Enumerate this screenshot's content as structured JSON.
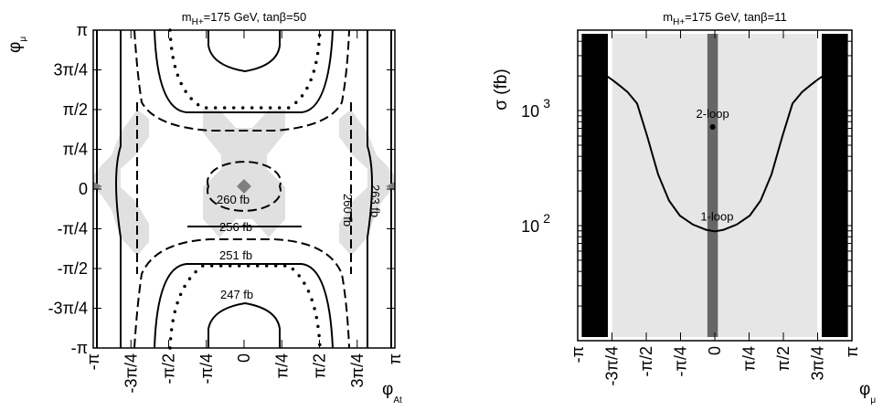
{
  "chart_data": [
    {
      "type": "contour",
      "title_main": "m",
      "title_sub": "H+",
      "title_rest": "=175 GeV, tanβ=50",
      "xlabel_main": "φ",
      "xlabel_sub": "At",
      "ylabel_main": "φ",
      "ylabel_sub": "μ",
      "xlim": [
        -3.1416,
        3.1416
      ],
      "ylim": [
        -3.1416,
        3.1416
      ],
      "x_ticks": [
        {
          "v": -3.1416,
          "label": "-π"
        },
        {
          "v": -2.3562,
          "label": "-3π/4"
        },
        {
          "v": -1.5708,
          "label": "-π/2"
        },
        {
          "v": -0.7854,
          "label": "-π/4"
        },
        {
          "v": 0,
          "label": "0"
        },
        {
          "v": 0.7854,
          "label": "π/4"
        },
        {
          "v": 1.5708,
          "label": "π/2"
        },
        {
          "v": 2.3562,
          "label": "3π/4"
        },
        {
          "v": 3.1416,
          "label": "π"
        }
      ],
      "y_ticks": [
        {
          "v": 3.1416,
          "label": "π"
        },
        {
          "v": 2.3562,
          "label": "3π/4"
        },
        {
          "v": 1.5708,
          "label": "π/2"
        },
        {
          "v": 0.7854,
          "label": "π/4"
        },
        {
          "v": 0,
          "label": "0"
        },
        {
          "v": -0.7854,
          "label": "-π/4"
        },
        {
          "v": -1.5708,
          "label": "-π/2"
        },
        {
          "v": -2.3562,
          "label": "-3π/4"
        },
        {
          "v": -3.1416,
          "label": "-π"
        }
      ],
      "contour_labels": [
        "260 fb",
        "256 fb",
        "251 fb",
        "247 fb",
        "260 fb",
        "263 fb"
      ],
      "contour_levels_fb": [
        247,
        251,
        256,
        260,
        263
      ]
    },
    {
      "type": "line",
      "title_main": "m",
      "title_sub": "H+",
      "title_rest": "=175 GeV, tanβ=11",
      "xlabel_main": "φ",
      "xlabel_sub": "μ",
      "ylabel": "σ (fb)",
      "y_scale": "log",
      "xlim": [
        -3.1416,
        3.1416
      ],
      "ylim": [
        10,
        5000
      ],
      "x_ticks": [
        {
          "v": -3.1416,
          "label": "-π"
        },
        {
          "v": -2.3562,
          "label": "-3π/4"
        },
        {
          "v": -1.5708,
          "label": "-π/2"
        },
        {
          "v": -0.7854,
          "label": "-π/4"
        },
        {
          "v": 0,
          "label": "0"
        },
        {
          "v": 0.7854,
          "label": "π/4"
        },
        {
          "v": 1.5708,
          "label": "π/2"
        },
        {
          "v": 2.3562,
          "label": "3π/4"
        },
        {
          "v": 3.1416,
          "label": "π"
        }
      ],
      "y_major_ticks": [
        {
          "v": 100,
          "base": "10",
          "exp": "2"
        },
        {
          "v": 1000,
          "base": "10",
          "exp": "3"
        }
      ],
      "series": [
        {
          "name": "1-loop",
          "x": [
            -2.93,
            -2.78,
            -2.62,
            -2.48,
            -2.35,
            -2.18,
            -2.0,
            -1.78,
            -1.55,
            -1.3,
            -1.05,
            -0.8,
            -0.5,
            -0.2,
            0.0,
            0.2,
            0.5,
            0.8,
            1.05,
            1.3,
            1.55,
            1.78,
            2.0,
            2.18,
            2.35,
            2.48,
            2.62,
            2.78,
            2.93
          ],
          "y": [
            3000,
            2000,
            2150,
            2000,
            1850,
            1650,
            1450,
            1150,
            600,
            280,
            165,
            122,
            102,
            92,
            89,
            92,
            102,
            122,
            165,
            280,
            600,
            1150,
            1450,
            1650,
            1850,
            2000,
            2150,
            2000,
            3000
          ]
        }
      ],
      "point": {
        "name": "2-loop",
        "x": -0.05,
        "y": 720
      },
      "bands": [
        {
          "kind": "excluded",
          "color": "#000000",
          "x": [
            -3.05,
            -2.45
          ]
        },
        {
          "kind": "excluded",
          "color": "#000000",
          "x": [
            2.45,
            3.05
          ]
        },
        {
          "kind": "allowed",
          "color": "#e6e6e6",
          "x": [
            -2.35,
            2.35
          ]
        },
        {
          "kind": "allowed-2loop",
          "color": "#666666",
          "x": [
            -0.17,
            0.07
          ]
        }
      ]
    }
  ]
}
